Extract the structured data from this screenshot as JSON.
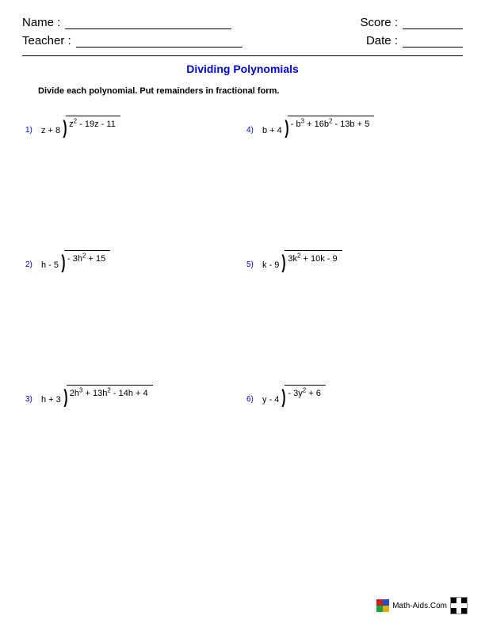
{
  "header": {
    "name_label": "Name :",
    "teacher_label": "Teacher :",
    "score_label": "Score :",
    "date_label": "Date :"
  },
  "title": "Dividing Polynomials",
  "instruction": "Divide each polynomial. Put remainders in fractional form.",
  "problems": [
    {
      "num": "1)",
      "divisor": "z + 8",
      "dividend_html": "z<sup>2</sup> - 19z - 11"
    },
    {
      "num": "4)",
      "divisor": "b + 4",
      "dividend_html": "- b<sup>3</sup> + 16b<sup>2</sup> - 13b + 5"
    },
    {
      "num": "2)",
      "divisor": "h - 5",
      "dividend_html": "- 3h<sup>2</sup> + 15"
    },
    {
      "num": "5)",
      "divisor": "k - 9",
      "dividend_html": "3k<sup>2</sup> + 10k - 9"
    },
    {
      "num": "3)",
      "divisor": "h + 3",
      "dividend_html": "2h<sup>3</sup> + 13h<sup>2</sup> - 14h + 4"
    },
    {
      "num": "6)",
      "divisor": "y - 4",
      "dividend_html": "- 3y<sup>2</sup> + 6"
    }
  ],
  "footer": {
    "site": "Math-Aids.Com"
  }
}
